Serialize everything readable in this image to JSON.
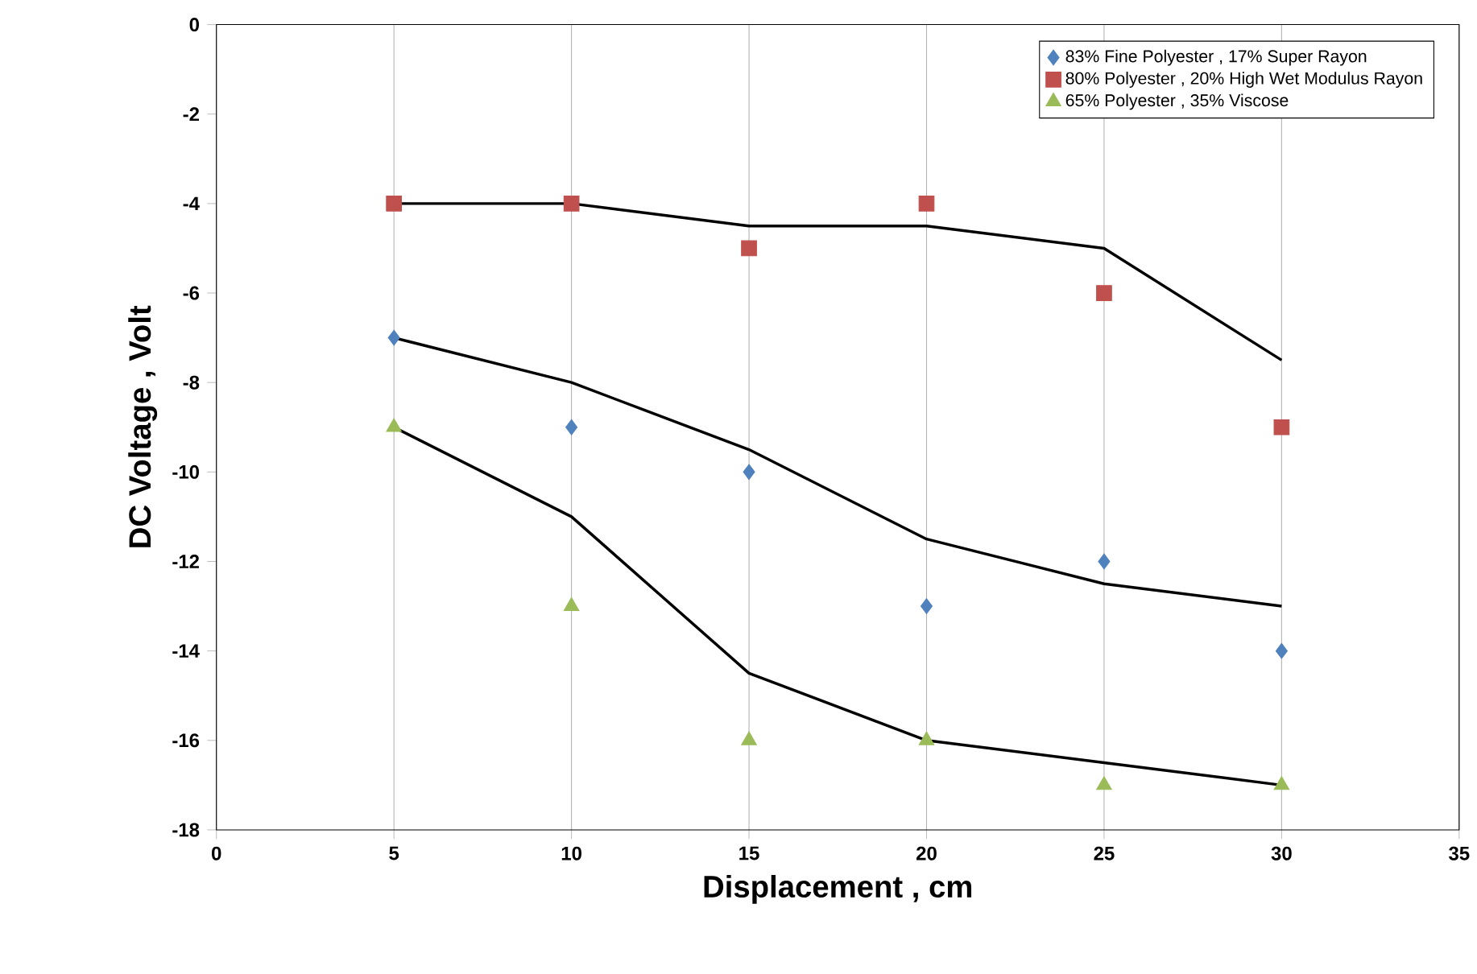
{
  "chart_data": {
    "type": "scatter",
    "xlabel": "Displacement  , cm",
    "ylabel": "DC Voltage , Volt",
    "xlim": [
      0,
      35
    ],
    "ylim": [
      -18,
      0
    ],
    "xticks": [
      0,
      5,
      10,
      15,
      20,
      25,
      30,
      35
    ],
    "yticks": [
      -18,
      -16,
      -14,
      -12,
      -10,
      -8,
      -6,
      -4,
      -2,
      0
    ],
    "grid": "x",
    "legend": "top right",
    "x": [
      5,
      10,
      15,
      20,
      25,
      30
    ],
    "series": [
      {
        "name": "83% Fine Polyester , 17% Super Rayon",
        "marker": "diamond",
        "color": "#4f81bd",
        "values": [
          -7,
          -9,
          -10,
          -13,
          -12,
          -14
        ]
      },
      {
        "name": "80% Polyester , 20% High Wet Modulus Rayon",
        "marker": "square",
        "color": "#c0504d",
        "values": [
          -4,
          -4,
          -5,
          -4,
          -6,
          -9
        ]
      },
      {
        "name": "65% Polyester , 35% Viscose",
        "marker": "triangle",
        "color": "#9bbb59",
        "values": [
          -9,
          -13,
          -16,
          -16,
          -17,
          -17
        ]
      },
      {
        "type": "line",
        "color": "#000000",
        "marker": "none",
        "values": [
          -4,
          -4,
          -4.5,
          -4.5,
          -5,
          -7.5
        ]
      },
      {
        "type": "line",
        "color": "#000000",
        "marker": "none",
        "values": [
          -7,
          -8,
          -9.5,
          -11.5,
          -12.5,
          -13
        ]
      },
      {
        "type": "line",
        "color": "#000000",
        "marker": "none",
        "values": [
          -9,
          -11,
          -14.5,
          -16,
          -16.5,
          -17
        ]
      }
    ]
  }
}
